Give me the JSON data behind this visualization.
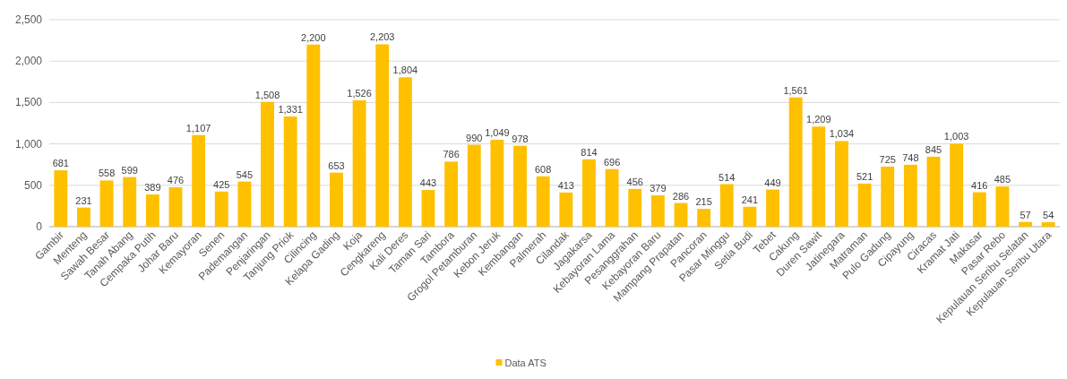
{
  "chart_data": {
    "type": "bar",
    "categories": [
      "Gambir",
      "Menteng",
      "Sawah Besar",
      "Tanah Abang",
      "Cempaka Putih",
      "Johar Baru",
      "Kemayoran",
      "Senen",
      "Pademangan",
      "Penjaringan",
      "Tanjung Priok",
      "Cilincing",
      "Kelapa Gading",
      "Koja",
      "Cengkareng",
      "Kali Deres",
      "Taman Sari",
      "Tambora",
      "Grogol Petamburan",
      "Kebon Jeruk",
      "Kembangan",
      "Palmerah",
      "Cilandak",
      "Jagakarsa",
      "Kebayoran Lama",
      "Pesanggrahan",
      "Kebayoran Baru",
      "Mampang Prapatan",
      "Pancoran",
      "Pasar Minggu",
      "Setia Budi",
      "Tebet",
      "Cakung",
      "Duren Sawit",
      "Jatinegara",
      "Matraman",
      "Pulo Gadung",
      "Cipayung",
      "Ciracas",
      "Kramat Jati",
      "Makasar",
      "Pasar Rebo",
      "Kepulauan Seribu Selatan",
      "Kepulauan Seribu Utara"
    ],
    "series": [
      {
        "name": "Data ATS",
        "color": "#ffc000",
        "values": [
          681,
          231,
          558,
          599,
          389,
          476,
          1107,
          425,
          545,
          1508,
          1331,
          2200,
          653,
          1526,
          2203,
          1804,
          443,
          786,
          990,
          1049,
          978,
          608,
          413,
          814,
          696,
          456,
          379,
          286,
          215,
          514,
          241,
          449,
          1561,
          1209,
          1034,
          521,
          725,
          748,
          845,
          1003,
          416,
          485,
          57,
          54
        ]
      }
    ],
    "ylim": [
      0,
      2500
    ],
    "yticks": [
      {
        "value": 0,
        "label": "0"
      },
      {
        "value": 500,
        "label": "500"
      },
      {
        "value": 1000,
        "label": "1,000"
      },
      {
        "value": 1500,
        "label": "1,500"
      },
      {
        "value": 2000,
        "label": "2,000"
      },
      {
        "value": 2500,
        "label": "2,500"
      }
    ],
    "value_labels": [
      "681",
      "231",
      "558",
      "599",
      "389",
      "476",
      "1,107",
      "425",
      "545",
      "1,508",
      "1,331",
      "2,200",
      "653",
      "1,526",
      "2,203",
      "1,804",
      "443",
      "786",
      "990",
      "1,049",
      "978",
      "608",
      "413",
      "814",
      "696",
      "456",
      "379",
      "286",
      "215",
      "514",
      "241",
      "449",
      "1,561",
      "1,209",
      "1,034",
      "521",
      "725",
      "748",
      "845",
      "1,003",
      "416",
      "485",
      "57",
      "54"
    ],
    "grid": "y",
    "legend": "bottom"
  }
}
